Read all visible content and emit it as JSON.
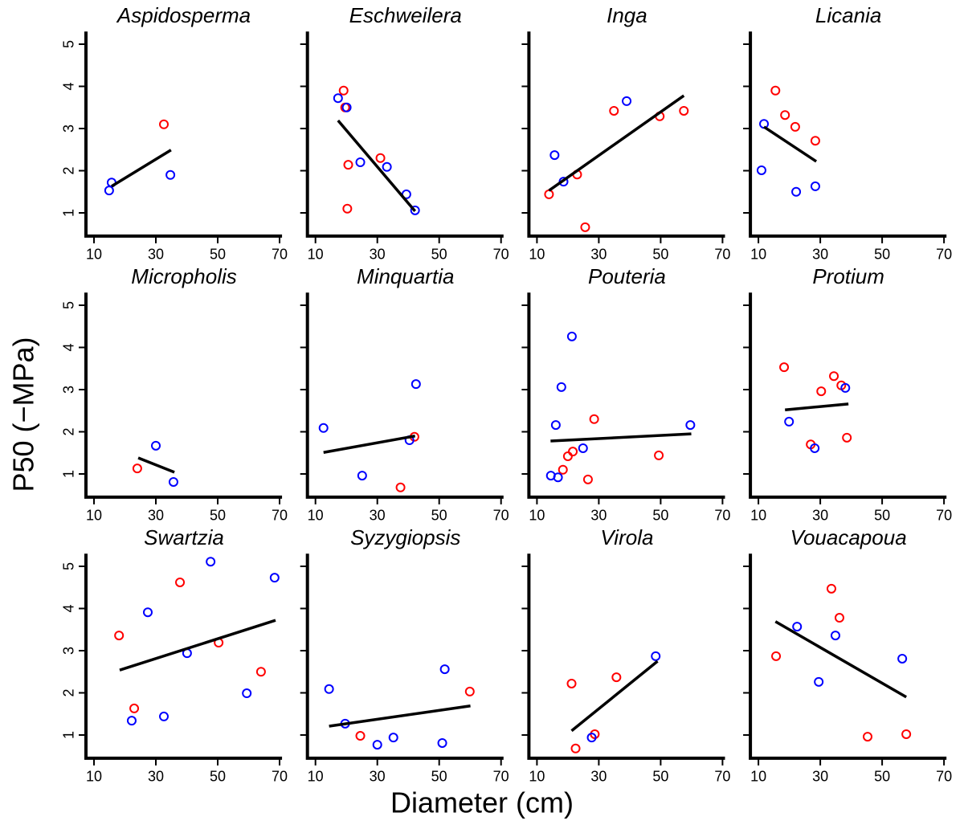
{
  "y_label": "P50 (−MPa)",
  "x_label": "Diameter (cm)",
  "chart_data": [
    {
      "type": "scatter",
      "title": "Aspidosperma",
      "xlim": [
        7.4,
        70.8
      ],
      "ylim": [
        0.45,
        5.3
      ],
      "xticks": [
        10,
        30,
        50,
        70
      ],
      "yticks": [
        1,
        2,
        3,
        4,
        5
      ],
      "series": [
        {
          "color": "#ff0000",
          "x": [
            32.6
          ],
          "values": [
            3.1
          ]
        },
        {
          "color": "#0000ff",
          "x": [
            15.7,
            14.9,
            34.7
          ],
          "values": [
            1.72,
            1.53,
            1.9
          ]
        }
      ],
      "fit": {
        "x": [
          15.7,
          34.9
        ],
        "y": [
          1.63,
          2.49
        ]
      }
    },
    {
      "type": "scatter",
      "title": "Eschweilera",
      "xlim": [
        7.4,
        70.8
      ],
      "ylim": [
        0.45,
        5.3
      ],
      "xticks": [
        10,
        30,
        50,
        70
      ],
      "yticks": [
        1,
        2,
        3,
        4,
        5
      ],
      "series": [
        {
          "color": "#ff0000",
          "x": [
            19.1,
            19.6,
            31.0,
            20.6,
            20.3
          ],
          "values": [
            3.9,
            3.5,
            2.3,
            2.14,
            1.1
          ]
        },
        {
          "color": "#0000ff",
          "x": [
            17.3,
            20.1,
            24.5,
            33.1,
            39.4,
            42.2
          ],
          "values": [
            3.72,
            3.5,
            2.2,
            2.09,
            1.44,
            1.06
          ]
        }
      ],
      "fit": {
        "x": [
          17.3,
          42.2
        ],
        "y": [
          3.19,
          1.04
        ]
      }
    },
    {
      "type": "scatter",
      "title": "Inga",
      "xlim": [
        7.4,
        70.8
      ],
      "ylim": [
        0.45,
        5.3
      ],
      "xticks": [
        10,
        30,
        50,
        70
      ],
      "yticks": [
        1,
        2,
        3,
        4,
        5
      ],
      "series": [
        {
          "color": "#ff0000",
          "x": [
            13.9,
            23.0,
            25.6,
            34.9,
            49.7,
            57.5
          ],
          "values": [
            1.44,
            1.91,
            0.66,
            3.42,
            3.29,
            3.42
          ]
        },
        {
          "color": "#0000ff",
          "x": [
            15.7,
            18.6,
            39.0
          ],
          "values": [
            2.37,
            1.74,
            3.65
          ]
        }
      ],
      "fit": {
        "x": [
          13.9,
          57.5
        ],
        "y": [
          1.53,
          3.78
        ]
      }
    },
    {
      "type": "scatter",
      "title": "Licania",
      "xlim": [
        7.4,
        70.8
      ],
      "ylim": [
        0.45,
        5.3
      ],
      "xticks": [
        10,
        30,
        50,
        70
      ],
      "yticks": [
        1,
        2,
        3,
        4,
        5
      ],
      "series": [
        {
          "color": "#ff0000",
          "x": [
            15.5,
            18.6,
            21.9,
            28.4
          ],
          "values": [
            3.9,
            3.32,
            3.04,
            2.71
          ]
        },
        {
          "color": "#0000ff",
          "x": [
            11.8,
            11.0,
            22.2,
            28.4
          ],
          "values": [
            3.11,
            2.01,
            1.5,
            1.63
          ]
        }
      ],
      "fit": {
        "x": [
          11.8,
          28.7
        ],
        "y": [
          3.04,
          2.22
        ]
      }
    },
    {
      "type": "scatter",
      "title": "Micropholis",
      "xlim": [
        7.4,
        70.8
      ],
      "ylim": [
        0.45,
        5.3
      ],
      "xticks": [
        10,
        30,
        50,
        70
      ],
      "yticks": [
        1,
        2,
        3,
        4,
        5
      ],
      "series": [
        {
          "color": "#ff0000",
          "x": [
            24.0
          ],
          "values": [
            1.13
          ]
        },
        {
          "color": "#0000ff",
          "x": [
            30.0,
            35.7
          ],
          "values": [
            1.67,
            0.81
          ]
        }
      ],
      "fit": {
        "x": [
          24.3,
          36.0
        ],
        "y": [
          1.38,
          1.04
        ]
      }
    },
    {
      "type": "scatter",
      "title": "Minquartia",
      "xlim": [
        7.4,
        70.8
      ],
      "ylim": [
        0.45,
        5.3
      ],
      "xticks": [
        10,
        30,
        50,
        70
      ],
      "yticks": [
        1,
        2,
        3,
        4,
        5
      ],
      "series": [
        {
          "color": "#ff0000",
          "x": [
            37.5,
            42.0
          ],
          "values": [
            0.68,
            1.88
          ]
        },
        {
          "color": "#0000ff",
          "x": [
            12.6,
            25.1,
            40.4,
            42.5
          ],
          "values": [
            2.09,
            0.96,
            1.8,
            3.13
          ]
        }
      ],
      "fit": {
        "x": [
          12.6,
          42.2
        ],
        "y": [
          1.51,
          1.9
        ]
      }
    },
    {
      "type": "scatter",
      "title": "Pouteria",
      "xlim": [
        7.4,
        70.8
      ],
      "ylim": [
        0.45,
        5.3
      ],
      "xticks": [
        10,
        30,
        50,
        70
      ],
      "yticks": [
        1,
        2,
        3,
        4,
        5
      ],
      "series": [
        {
          "color": "#ff0000",
          "x": [
            28.5,
            21.6,
            20.0,
            18.4,
            26.5,
            49.4
          ],
          "values": [
            2.3,
            1.53,
            1.42,
            1.1,
            0.87,
            1.44
          ]
        },
        {
          "color": "#0000ff",
          "x": [
            21.3,
            17.9,
            16.1,
            14.5,
            16.8,
            24.9,
            59.6
          ],
          "values": [
            4.26,
            3.06,
            2.16,
            0.96,
            0.92,
            1.61,
            2.16
          ]
        }
      ],
      "fit": {
        "x": [
          14.4,
          59.9
        ],
        "y": [
          1.78,
          1.95
        ]
      }
    },
    {
      "type": "scatter",
      "title": "Protium",
      "xlim": [
        7.4,
        70.8
      ],
      "ylim": [
        0.45,
        5.3
      ],
      "xticks": [
        10,
        30,
        50,
        70
      ],
      "yticks": [
        1,
        2,
        3,
        4,
        5
      ],
      "series": [
        {
          "color": "#ff0000",
          "x": [
            18.3,
            30.3,
            34.4,
            36.8,
            26.9,
            38.6
          ],
          "values": [
            3.53,
            2.96,
            3.32,
            3.1,
            1.7,
            1.86
          ]
        },
        {
          "color": "#0000ff",
          "x": [
            19.9,
            38.1,
            28.2
          ],
          "values": [
            2.24,
            3.04,
            1.61
          ]
        }
      ],
      "fit": {
        "x": [
          18.6,
          39.1
        ],
        "y": [
          2.52,
          2.66
        ]
      }
    },
    {
      "type": "scatter",
      "title": "Swartzia",
      "xlim": [
        7.4,
        70.8
      ],
      "ylim": [
        0.45,
        5.3
      ],
      "xticks": [
        10,
        30,
        50,
        70
      ],
      "yticks": [
        1,
        2,
        3,
        4,
        5
      ],
      "series": [
        {
          "color": "#ff0000",
          "x": [
            18.1,
            37.8,
            50.3,
            64.0,
            23.0
          ],
          "values": [
            3.36,
            4.62,
            3.19,
            2.5,
            1.63
          ]
        },
        {
          "color": "#0000ff",
          "x": [
            47.7,
            68.4,
            27.4,
            40.1,
            59.4,
            32.6,
            22.2
          ],
          "values": [
            5.11,
            4.73,
            3.91,
            2.94,
            1.99,
            1.44,
            1.34
          ]
        }
      ],
      "fit": {
        "x": [
          18.3,
          68.7
        ],
        "y": [
          2.54,
          3.72
        ]
      }
    },
    {
      "type": "scatter",
      "title": "Syzygiopsis",
      "xlim": [
        7.4,
        70.8
      ],
      "ylim": [
        0.45,
        5.3
      ],
      "xticks": [
        10,
        30,
        50,
        70
      ],
      "yticks": [
        1,
        2,
        3,
        4,
        5
      ],
      "series": [
        {
          "color": "#ff0000",
          "x": [
            59.9,
            24.5
          ],
          "values": [
            2.03,
            0.98
          ]
        },
        {
          "color": "#0000ff",
          "x": [
            14.4,
            51.8,
            19.6,
            30.0,
            35.2,
            51.0
          ],
          "values": [
            2.09,
            2.56,
            1.27,
            0.77,
            0.94,
            0.81
          ]
        }
      ],
      "fit": {
        "x": [
          14.4,
          60.1
        ],
        "y": [
          1.21,
          1.69
        ]
      }
    },
    {
      "type": "scatter",
      "title": "Virola",
      "xlim": [
        7.4,
        70.8
      ],
      "ylim": [
        0.45,
        5.3
      ],
      "xticks": [
        10,
        30,
        50,
        70
      ],
      "yticks": [
        1,
        2,
        3,
        4,
        5
      ],
      "series": [
        {
          "color": "#ff0000",
          "x": [
            21.2,
            35.7,
            28.7,
            22.5
          ],
          "values": [
            2.22,
            2.37,
            1.02,
            0.68
          ]
        },
        {
          "color": "#0000ff",
          "x": [
            48.4,
            27.7
          ],
          "values": [
            2.87,
            0.94
          ]
        }
      ],
      "fit": {
        "x": [
          21.2,
          49.0
        ],
        "y": [
          1.1,
          2.75
        ]
      }
    },
    {
      "type": "scatter",
      "title": "Vouacapoua",
      "xlim": [
        7.4,
        70.8
      ],
      "ylim": [
        0.45,
        5.3
      ],
      "xticks": [
        10,
        30,
        50,
        70
      ],
      "yticks": [
        1,
        2,
        3,
        4,
        5
      ],
      "series": [
        {
          "color": "#ff0000",
          "x": [
            33.6,
            36.2,
            15.7,
            45.3,
            57.8
          ],
          "values": [
            4.47,
            3.78,
            2.87,
            0.96,
            1.02
          ]
        },
        {
          "color": "#0000ff",
          "x": [
            22.5,
            34.9,
            29.5,
            56.5
          ],
          "values": [
            3.57,
            3.36,
            2.26,
            2.81
          ]
        }
      ],
      "fit": {
        "x": [
          15.5,
          57.8
        ],
        "y": [
          3.69,
          1.9
        ]
      }
    }
  ]
}
